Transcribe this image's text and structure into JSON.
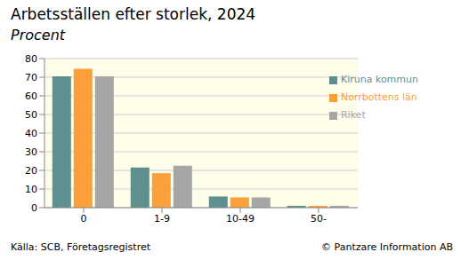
{
  "chart_data": {
    "type": "bar",
    "title": "Arbetsställen efter storlek, 2024",
    "subtitle": "Procent",
    "categories": [
      "0",
      "1-9",
      "10-49",
      "50-"
    ],
    "series": [
      {
        "name": "Kiruna kommun",
        "color": "#5f9090",
        "values": [
          70.5,
          21.5,
          6,
          1
        ]
      },
      {
        "name": "Norrbottens län",
        "color": "#f9a03a",
        "values": [
          74.5,
          18.5,
          5.5,
          1
        ]
      },
      {
        "name": "Riket",
        "color": "#a6a6a6",
        "values": [
          70.5,
          22.5,
          5.5,
          1
        ]
      }
    ],
    "ylim": [
      0,
      80
    ],
    "yticks": [
      0,
      10,
      20,
      30,
      40,
      50,
      60,
      70,
      80
    ],
    "grid": true,
    "legend": "upper right",
    "annotations": [
      "Källa: SCB, Företagsregistret",
      "© Pantzare Information AB"
    ]
  }
}
